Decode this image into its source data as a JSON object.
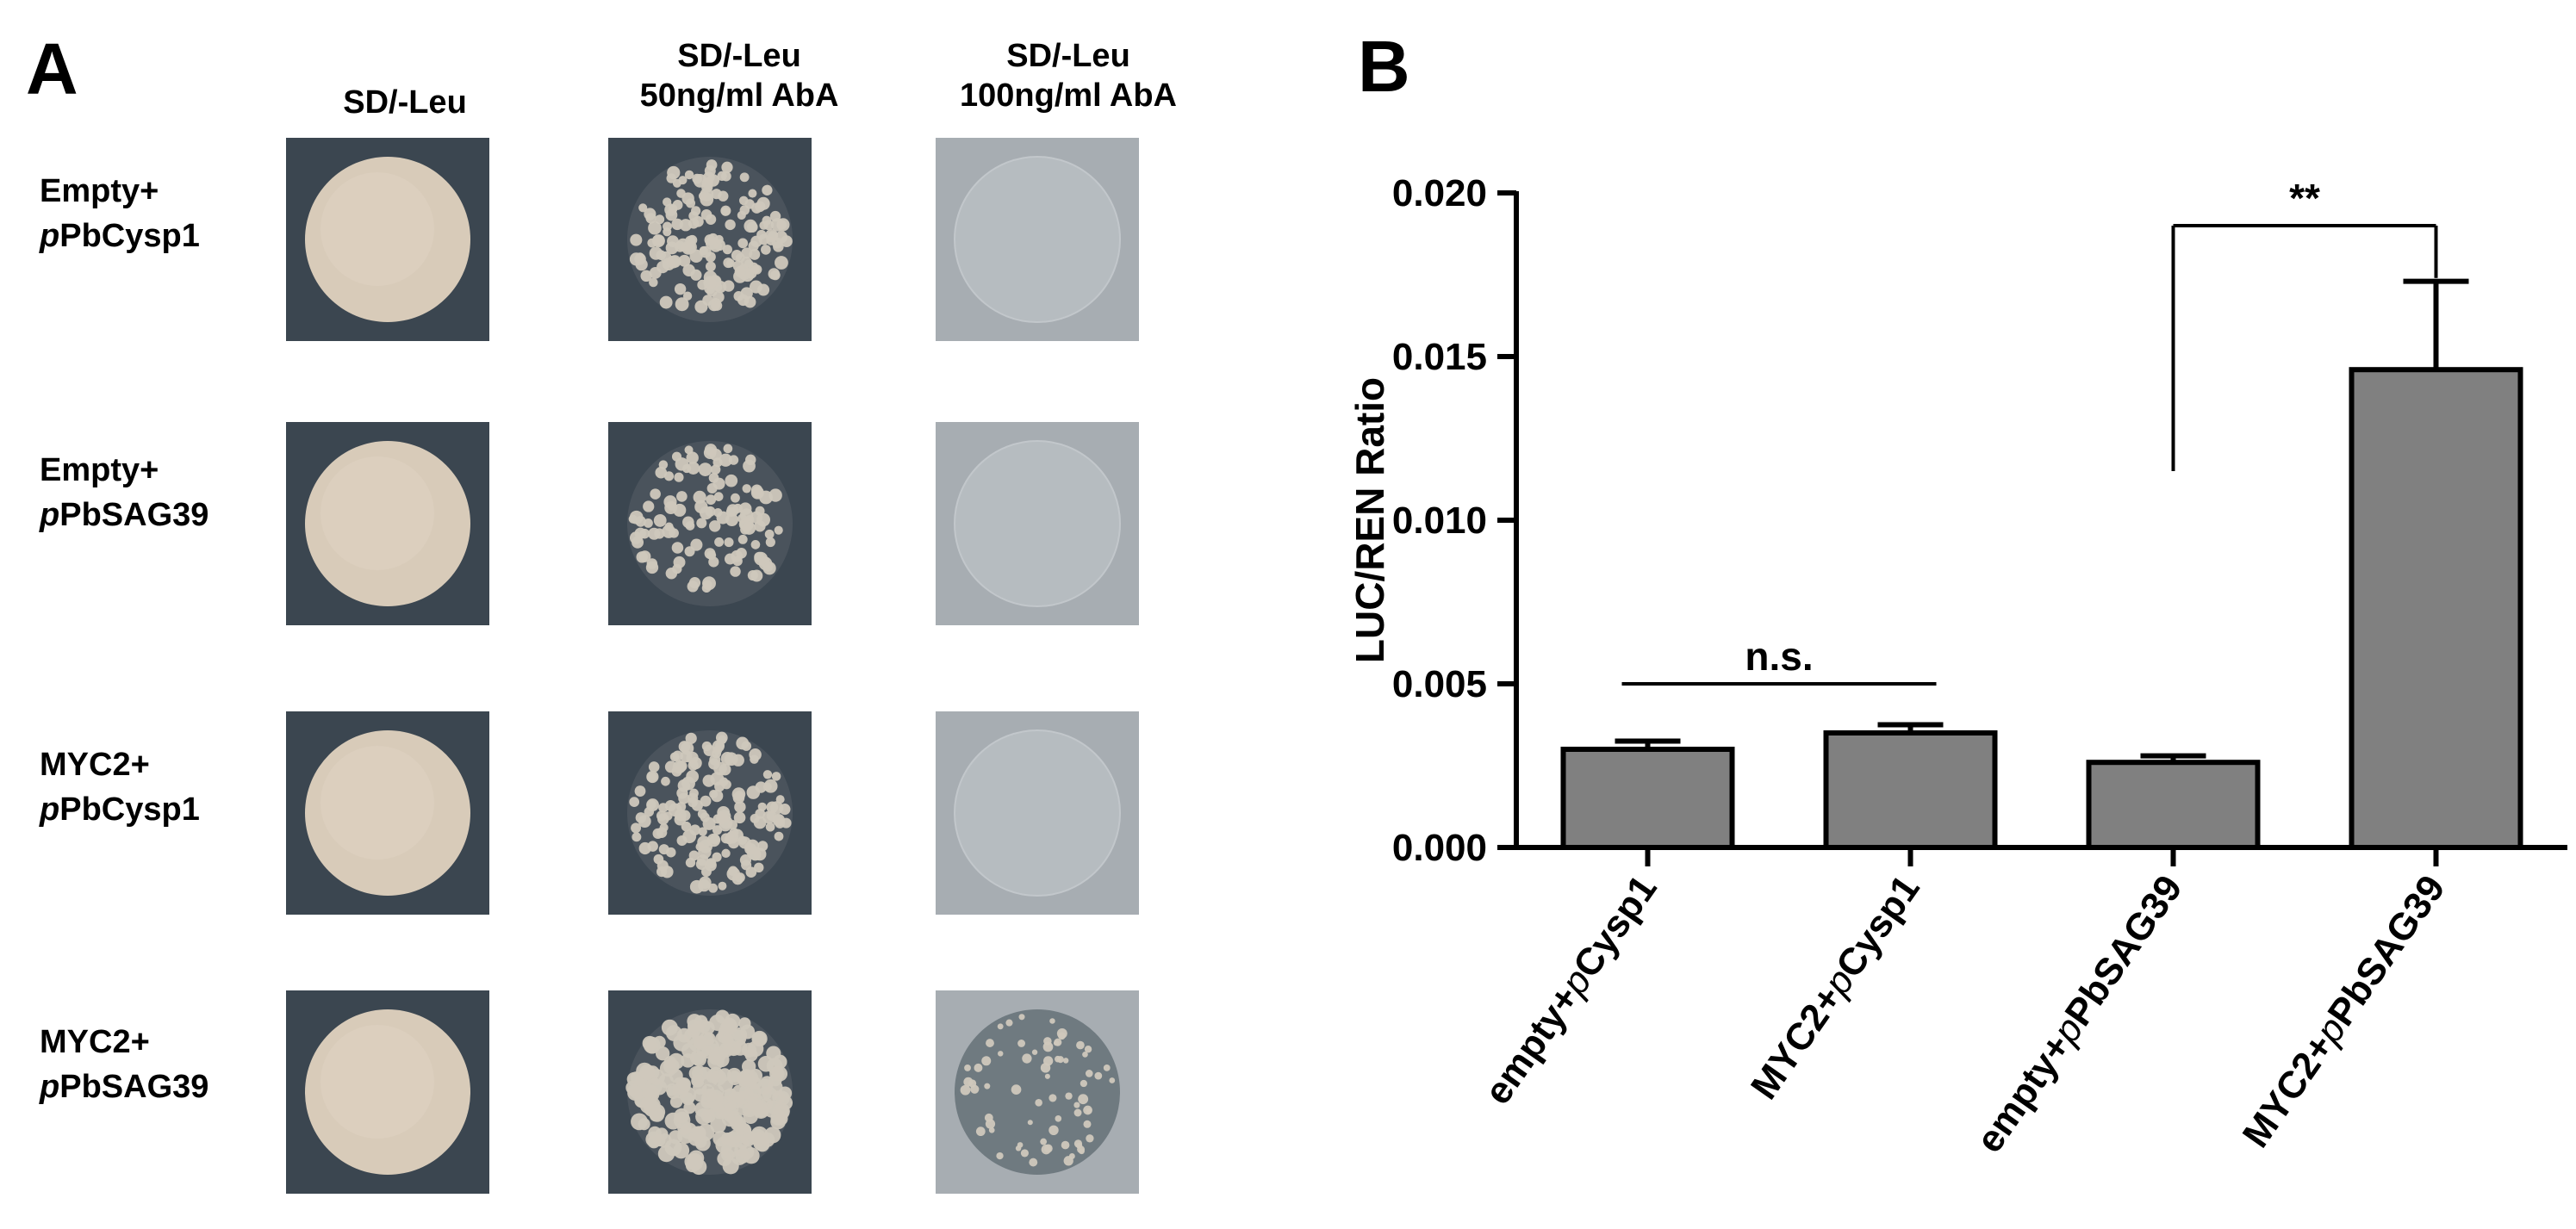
{
  "panel_a": {
    "letter": "A",
    "columns": [
      {
        "line1": "SD/-Leu",
        "line2": ""
      },
      {
        "line1": "SD/-Leu",
        "line2": "50ng/ml AbA"
      },
      {
        "line1": "SD/-Leu",
        "line2": "100ng/ml AbA"
      }
    ],
    "rows": [
      {
        "line1": "Empty+",
        "italic": "p",
        "rest": "PbCysp1",
        "growth": [
          "lawn",
          "dense-colonies",
          "none"
        ]
      },
      {
        "line1": "Empty+",
        "italic": "p",
        "rest": "PbSAG39",
        "growth": [
          "lawn",
          "sparse-colonies",
          "none"
        ]
      },
      {
        "line1": "MYC2+",
        "italic": "p",
        "rest": "PbCysp1",
        "growth": [
          "lawn",
          "dense-colonies",
          "none"
        ]
      },
      {
        "line1": "MYC2+",
        "italic": "p",
        "rest": "PbSAG39",
        "growth": [
          "lawn",
          "confluent-colonies",
          "scattered-colonies"
        ]
      }
    ],
    "colors": {
      "plate_dark": "#3b4650",
      "plate_light": "#a7adb2",
      "lawn": "#d8cbb9",
      "colony": "#cfc8bc"
    }
  },
  "panel_b": {
    "letter": "B",
    "chart_data": {
      "type": "bar",
      "ylabel": "LUC/REN Ratio",
      "ylim": [
        0,
        0.02
      ],
      "yticks": [
        "0.000",
        "0.005",
        "0.010",
        "0.015",
        "0.020"
      ],
      "ytick_values": [
        0,
        0.005,
        0.01,
        0.015,
        0.02
      ],
      "categories": [
        {
          "pre": "empty+",
          "it": "p",
          "post": "Cysp1"
        },
        {
          "pre": "MYC2+",
          "it": "p",
          "post": "Cysp1"
        },
        {
          "pre": "empty+",
          "it": "p",
          "post": "PbSAG39"
        },
        {
          "pre": "MYC2+",
          "it": "p",
          "post": "PbSAG39"
        }
      ],
      "values": [
        0.003,
        0.0035,
        0.0026,
        0.0146
      ],
      "errors": [
        0.00025,
        0.00025,
        0.0002,
        0.0027
      ],
      "annotations": [
        {
          "text": "n.s.",
          "from": 0,
          "to": 1,
          "y": 0.005
        },
        {
          "text": "**",
          "from": 2,
          "to": 3,
          "y": 0.019,
          "left_drop_to": 0.0115,
          "right_drop_to": 0.0174
        }
      ],
      "bar_color": "#808080",
      "grid": false,
      "legend": "none"
    }
  }
}
